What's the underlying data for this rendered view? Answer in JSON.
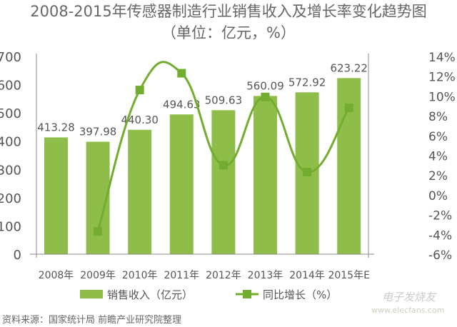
{
  "title": "2008-2015年传感器制造行业销售收入及增长率变化趋势图",
  "subtitle": "（单位：亿元，%）",
  "source": "资料来源：国家统计局 前瞻产业研究院整理",
  "watermark": {
    "line1": "电子发烧友",
    "line2": "www.elecfans.com"
  },
  "colors": {
    "bar": "#8fbd4a",
    "line": "#72ad2f",
    "axis": "#888888",
    "text": "#555555"
  },
  "chart_data": {
    "type": "bar",
    "title": "2008-2015年传感器制造行业销售收入及增长率变化趋势图",
    "subtitle": "（单位：亿元，%）",
    "categories": [
      "2008年",
      "2009年",
      "2010年",
      "2011年",
      "2012年",
      "2013年",
      "2014年",
      "2015年E"
    ],
    "series": [
      {
        "name": "销售收入（亿元）",
        "type": "bar",
        "axis": "left",
        "values": [
          413.28,
          397.98,
          440.3,
          494.63,
          509.63,
          560.09,
          572.92,
          623.22
        ]
      },
      {
        "name": "同比增长（%）",
        "type": "line",
        "axis": "right",
        "values": [
          null,
          -3.7,
          10.6,
          12.3,
          3.0,
          9.9,
          2.3,
          8.8
        ]
      }
    ],
    "left_axis": {
      "ticks": [
        "0",
        "100",
        "200",
        "300",
        "400",
        "500",
        "600",
        "700"
      ],
      "ylim": [
        0,
        700
      ]
    },
    "right_axis": {
      "ticks": [
        "-6%",
        "-4%",
        "-2%",
        "0%",
        "2%",
        "4%",
        "6%",
        "8%",
        "10%",
        "12%",
        "14%"
      ],
      "ylim": [
        -6,
        14
      ]
    },
    "legend": [
      "销售收入（亿元）",
      "同比增长（%）"
    ],
    "legend_position": "bottom",
    "grid": false
  }
}
